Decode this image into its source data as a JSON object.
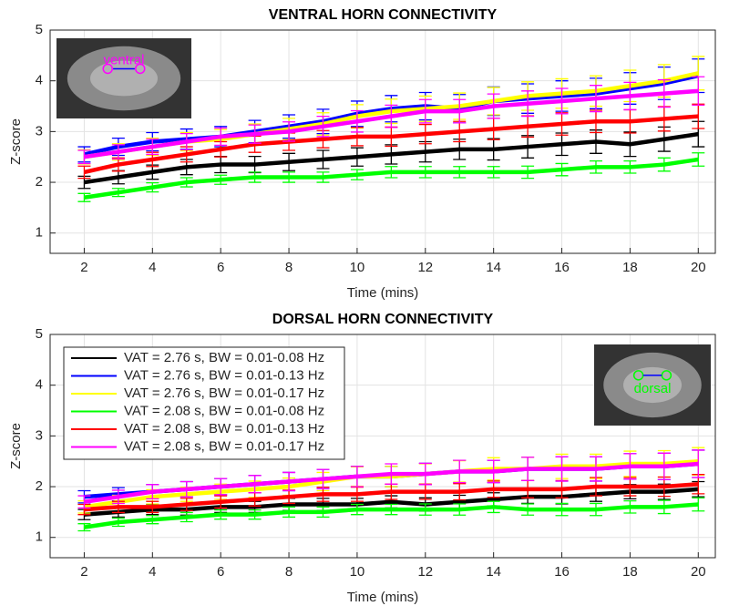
{
  "chart_data": [
    {
      "type": "line",
      "title": "VENTRAL HORN CONNECTIVITY",
      "x_label": "Time (mins)",
      "y_label": "Z-score",
      "inset_label": "ventral",
      "inset_color": "#ff00ff",
      "x": [
        2,
        3,
        4,
        5,
        6,
        7,
        8,
        9,
        10,
        11,
        12,
        13,
        14,
        15,
        16,
        17,
        18,
        19,
        20
      ],
      "xlim": [
        1,
        20.5
      ],
      "ylim": [
        0.6,
        5
      ],
      "xticks": [
        2,
        4,
        6,
        8,
        10,
        12,
        14,
        16,
        18,
        20
      ],
      "yticks": [
        1,
        2,
        3,
        4,
        5
      ],
      "grid": true,
      "series": [
        {
          "color": "#000000",
          "values": [
            2.0,
            2.1,
            2.2,
            2.3,
            2.35,
            2.35,
            2.4,
            2.45,
            2.5,
            2.55,
            2.6,
            2.65,
            2.65,
            2.7,
            2.75,
            2.8,
            2.75,
            2.85,
            2.95
          ],
          "errors": [
            0.12,
            0.13,
            0.14,
            0.15,
            0.16,
            0.16,
            0.17,
            0.18,
            0.18,
            0.19,
            0.2,
            0.2,
            0.21,
            0.22,
            0.22,
            0.23,
            0.24,
            0.24,
            0.25
          ]
        },
        {
          "color": "#0000ff",
          "values": [
            2.55,
            2.7,
            2.8,
            2.85,
            2.9,
            3.0,
            3.1,
            3.2,
            3.35,
            3.45,
            3.5,
            3.45,
            3.6,
            3.65,
            3.7,
            3.75,
            3.85,
            3.95,
            4.1
          ],
          "errors": [
            0.15,
            0.17,
            0.18,
            0.2,
            0.2,
            0.22,
            0.23,
            0.24,
            0.25,
            0.26,
            0.27,
            0.28,
            0.28,
            0.29,
            0.3,
            0.3,
            0.31,
            0.32,
            0.33
          ]
        },
        {
          "color": "#ffff00",
          "values": [
            2.5,
            2.6,
            2.7,
            2.8,
            2.85,
            2.95,
            3.05,
            3.15,
            3.3,
            3.4,
            3.45,
            3.5,
            3.6,
            3.7,
            3.75,
            3.8,
            3.9,
            4.0,
            4.15
          ],
          "errors": [
            0.14,
            0.16,
            0.17,
            0.18,
            0.19,
            0.2,
            0.21,
            0.22,
            0.23,
            0.24,
            0.25,
            0.26,
            0.27,
            0.28,
            0.29,
            0.3,
            0.31,
            0.32,
            0.33
          ]
        },
        {
          "color": "#00ff00",
          "values": [
            1.7,
            1.8,
            1.9,
            2.0,
            2.05,
            2.1,
            2.1,
            2.1,
            2.15,
            2.2,
            2.2,
            2.2,
            2.2,
            2.2,
            2.25,
            2.3,
            2.3,
            2.35,
            2.45
          ],
          "errors": [
            0.08,
            0.08,
            0.09,
            0.09,
            0.09,
            0.1,
            0.1,
            0.1,
            0.1,
            0.11,
            0.11,
            0.11,
            0.11,
            0.12,
            0.12,
            0.12,
            0.12,
            0.13,
            0.13
          ]
        },
        {
          "color": "#ff0000",
          "values": [
            2.2,
            2.35,
            2.45,
            2.55,
            2.65,
            2.75,
            2.8,
            2.85,
            2.9,
            2.9,
            2.95,
            3.0,
            3.05,
            3.1,
            3.15,
            3.2,
            3.2,
            3.25,
            3.3
          ],
          "errors": [
            0.12,
            0.13,
            0.14,
            0.15,
            0.15,
            0.16,
            0.17,
            0.17,
            0.18,
            0.19,
            0.19,
            0.2,
            0.21,
            0.21,
            0.22,
            0.22,
            0.23,
            0.24,
            0.24
          ]
        },
        {
          "color": "#ff00ff",
          "values": [
            2.5,
            2.6,
            2.7,
            2.8,
            2.9,
            2.95,
            3.0,
            3.1,
            3.2,
            3.3,
            3.4,
            3.4,
            3.5,
            3.55,
            3.6,
            3.65,
            3.7,
            3.75,
            3.8
          ],
          "errors": [
            0.13,
            0.14,
            0.15,
            0.16,
            0.17,
            0.18,
            0.19,
            0.2,
            0.21,
            0.22,
            0.23,
            0.23,
            0.24,
            0.25,
            0.25,
            0.26,
            0.27,
            0.27,
            0.28
          ]
        }
      ]
    },
    {
      "type": "line",
      "title": "DORSAL HORN CONNECTIVITY",
      "x_label": "Time (mins)",
      "y_label": "Z-score",
      "inset_label": "dorsal",
      "inset_color": "#00ff00",
      "legend": "upper left",
      "x": [
        2,
        3,
        4,
        5,
        6,
        7,
        8,
        9,
        10,
        11,
        12,
        13,
        14,
        15,
        16,
        17,
        18,
        19,
        20
      ],
      "xlim": [
        1,
        20.5
      ],
      "ylim": [
        0.6,
        5
      ],
      "xticks": [
        2,
        4,
        6,
        8,
        10,
        12,
        14,
        16,
        18,
        20
      ],
      "yticks": [
        1,
        2,
        3,
        4,
        5
      ],
      "grid": true,
      "series": [
        {
          "name": "VAT = 2.76 s, BW = 0.01-0.08 Hz",
          "color": "#000000",
          "values": [
            1.45,
            1.5,
            1.55,
            1.55,
            1.6,
            1.6,
            1.65,
            1.65,
            1.65,
            1.7,
            1.65,
            1.7,
            1.75,
            1.8,
            1.8,
            1.85,
            1.9,
            1.9,
            1.95
          ],
          "errors": [
            0.1,
            0.1,
            0.1,
            0.11,
            0.11,
            0.11,
            0.12,
            0.12,
            0.12,
            0.12,
            0.13,
            0.13,
            0.13,
            0.13,
            0.14,
            0.14,
            0.14,
            0.15,
            0.15
          ]
        },
        {
          "name": "VAT = 2.76 s, BW = 0.01-0.13 Hz",
          "color": "#0000ff",
          "values": [
            1.8,
            1.85,
            1.9,
            1.95,
            2.0,
            2.05,
            2.1,
            2.15,
            2.2,
            2.2,
            2.25,
            2.3,
            2.3,
            2.35,
            2.35,
            2.35,
            2.4,
            2.4,
            2.45
          ],
          "errors": [
            0.12,
            0.13,
            0.14,
            0.15,
            0.16,
            0.17,
            0.18,
            0.19,
            0.2,
            0.2,
            0.21,
            0.22,
            0.22,
            0.23,
            0.24,
            0.24,
            0.25,
            0.26,
            0.27
          ]
        },
        {
          "name": "VAT = 2.76 s, BW = 0.01-0.17 Hz",
          "color": "#ffff00",
          "values": [
            1.6,
            1.7,
            1.8,
            1.85,
            1.9,
            1.95,
            2.0,
            2.1,
            2.2,
            2.2,
            2.25,
            2.3,
            2.35,
            2.35,
            2.4,
            2.4,
            2.45,
            2.45,
            2.5
          ],
          "errors": [
            0.12,
            0.13,
            0.14,
            0.14,
            0.15,
            0.16,
            0.17,
            0.18,
            0.19,
            0.2,
            0.2,
            0.21,
            0.22,
            0.23,
            0.24,
            0.24,
            0.25,
            0.26,
            0.27
          ]
        },
        {
          "name": "VAT = 2.08 s, BW = 0.01-0.08 Hz",
          "color": "#00ff00",
          "values": [
            1.2,
            1.3,
            1.35,
            1.4,
            1.45,
            1.45,
            1.5,
            1.5,
            1.55,
            1.55,
            1.55,
            1.55,
            1.6,
            1.55,
            1.55,
            1.55,
            1.6,
            1.6,
            1.65
          ],
          "errors": [
            0.07,
            0.08,
            0.08,
            0.09,
            0.09,
            0.09,
            0.1,
            0.1,
            0.1,
            0.1,
            0.11,
            0.11,
            0.11,
            0.11,
            0.12,
            0.12,
            0.12,
            0.13,
            0.13
          ]
        },
        {
          "name": "VAT = 2.08 s, BW = 0.01-0.13 Hz",
          "color": "#ff0000",
          "values": [
            1.55,
            1.6,
            1.6,
            1.65,
            1.7,
            1.75,
            1.8,
            1.85,
            1.85,
            1.9,
            1.9,
            1.9,
            1.95,
            1.95,
            1.95,
            2.0,
            2.0,
            2.0,
            2.05
          ],
          "errors": [
            0.1,
            0.11,
            0.11,
            0.12,
            0.12,
            0.13,
            0.13,
            0.14,
            0.14,
            0.15,
            0.15,
            0.16,
            0.16,
            0.17,
            0.17,
            0.18,
            0.18,
            0.19,
            0.19
          ]
        },
        {
          "name": "VAT = 2.08 s, BW = 0.01-0.17 Hz",
          "color": "#ff00ff",
          "values": [
            1.7,
            1.8,
            1.9,
            1.95,
            2.0,
            2.05,
            2.1,
            2.15,
            2.2,
            2.25,
            2.25,
            2.3,
            2.3,
            2.35,
            2.35,
            2.35,
            2.4,
            2.4,
            2.45
          ],
          "errors": [
            0.12,
            0.13,
            0.14,
            0.15,
            0.16,
            0.17,
            0.18,
            0.19,
            0.2,
            0.2,
            0.21,
            0.22,
            0.22,
            0.23,
            0.24,
            0.24,
            0.25,
            0.26,
            0.27
          ]
        }
      ]
    }
  ]
}
